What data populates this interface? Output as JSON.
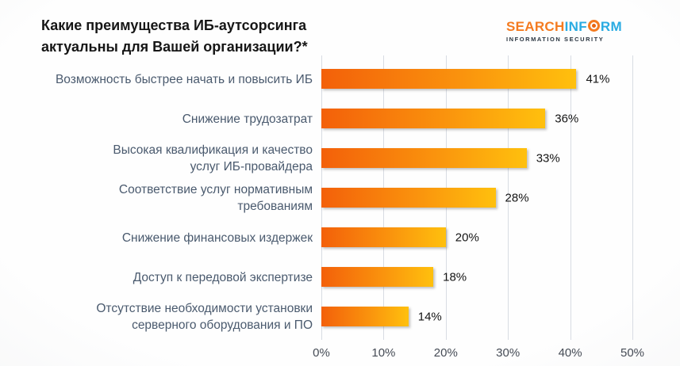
{
  "title": {
    "line1": "Какие преимущества ИБ-аутсорсинга",
    "line2": "актуальны для Вашей организации?*"
  },
  "logo": {
    "word_orange": "SEARCH",
    "word_blue1": "INF",
    "word_blue2": "RM",
    "eye_icon": "concentric-orange-circle-o",
    "subtitle": "INFORMATION SECURITY",
    "color_orange": "#F47B20",
    "color_blue": "#29ABE2"
  },
  "chart_data": {
    "type": "bar",
    "orientation": "horizontal",
    "categories": [
      "Возможность быстрее начать и повысить ИБ",
      "Снижение трудозатрат",
      "Высокая квалификация и качество\nуслуг ИБ-провайдера",
      "Соответствие услуг нормативным\nтребованиям",
      "Снижение финансовых издержек",
      "Доступ к передовой экспертизе",
      "Отсутствие необходимости установки\nсерверного оборудования и ПО"
    ],
    "values": [
      41,
      36,
      33,
      28,
      20,
      18,
      14
    ],
    "value_labels": [
      "41%",
      "36%",
      "33%",
      "28%",
      "20%",
      "18%",
      "14%"
    ],
    "x_ticks": [
      "0%",
      "10%",
      "20%",
      "30%",
      "40%",
      "50%"
    ],
    "xlim": [
      0,
      50
    ],
    "grid": true,
    "legend": "none",
    "bar_gradient": [
      "#F3600A",
      "#FA930D",
      "#FFC00D"
    ],
    "gridline_color": "#D8DCE3",
    "category_color": "#4A5A6E"
  }
}
